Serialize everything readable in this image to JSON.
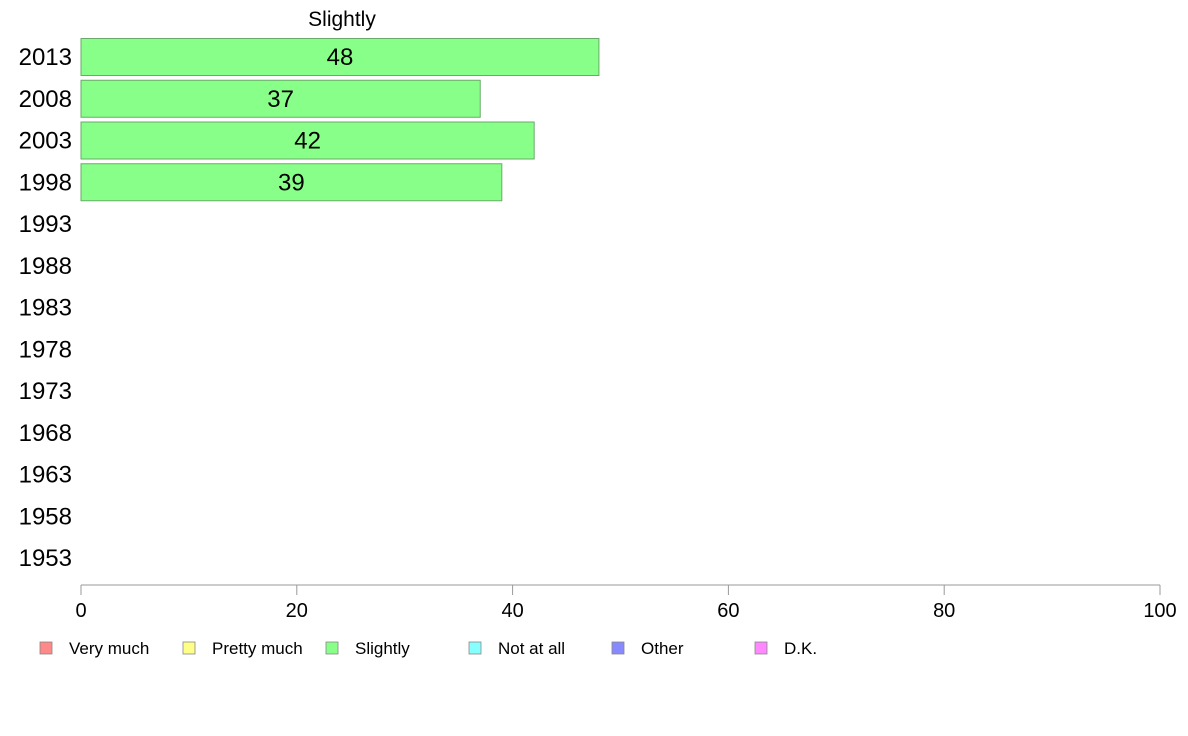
{
  "chart_data": {
    "type": "bar",
    "orientation": "horizontal",
    "title": "Slightly",
    "categories": [
      "2013",
      "2008",
      "2003",
      "1998",
      "1993",
      "1988",
      "1983",
      "1978",
      "1973",
      "1968",
      "1963",
      "1958",
      "1953"
    ],
    "series": [
      {
        "name": "Slightly",
        "color": "#88ff88",
        "values": [
          48,
          37,
          42,
          39,
          null,
          null,
          null,
          null,
          null,
          null,
          null,
          null,
          null
        ]
      }
    ],
    "xlim": [
      0,
      100
    ],
    "xticks": [
      0,
      20,
      40,
      60,
      80,
      100
    ],
    "grid": false,
    "legend_position": "bottom-left",
    "legend": [
      {
        "label": "Very much",
        "color": "#ff8888"
      },
      {
        "label": "Pretty much",
        "color": "#ffff88"
      },
      {
        "label": "Slightly",
        "color": "#88ff88"
      },
      {
        "label": "Not at all",
        "color": "#88ffff"
      },
      {
        "label": "Other",
        "color": "#8888ff"
      },
      {
        "label": "D.K.",
        "color": "#ff88ff"
      }
    ]
  }
}
